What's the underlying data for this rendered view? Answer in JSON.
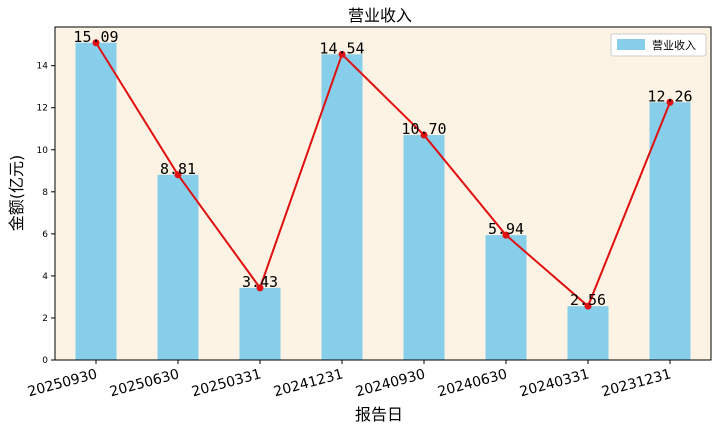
{
  "chart_data": {
    "type": "bar",
    "title": "营业收入",
    "xlabel": "报告日",
    "ylabel": "金额(亿元)",
    "categories": [
      "20250930",
      "20250630",
      "20250331",
      "20241231",
      "20240930",
      "20240630",
      "20240331",
      "20231231"
    ],
    "series": [
      {
        "name": "营业收入",
        "type": "bar",
        "values": [
          15.09,
          8.81,
          3.43,
          14.54,
          10.7,
          5.94,
          2.56,
          12.26
        ]
      }
    ],
    "data_labels": [
      "15.09",
      "8.81",
      "3.43",
      "14.54",
      "10.70",
      "5.94",
      "2.56",
      "12.26"
    ],
    "overlay_line": {
      "type": "line",
      "values": [
        15.09,
        8.81,
        3.43,
        14.54,
        10.7,
        5.94,
        2.56,
        12.26
      ],
      "markers": true
    },
    "yticks": [
      0,
      2,
      4,
      6,
      8,
      10,
      12,
      14
    ],
    "ylim": [
      0,
      15.84
    ],
    "grid": false,
    "legend_position": "top-right",
    "colors": {
      "bar": "#87CEEB",
      "line": "#E01010",
      "plot_background": "#FDF3E4",
      "frame": "#000000"
    }
  }
}
